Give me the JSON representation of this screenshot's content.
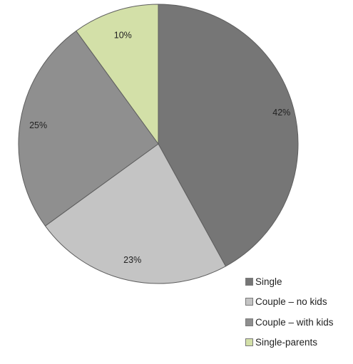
{
  "chart_data": {
    "type": "pie",
    "title": "",
    "categories": [
      "Single",
      "Couple – no kids",
      "Couple – with kids",
      "Single-parents"
    ],
    "values": [
      42,
      23,
      25,
      10
    ],
    "data_labels": [
      "42%",
      "23%",
      "25%",
      "10%"
    ],
    "colors": [
      "#767676",
      "#c4c4c4",
      "#8f8f8f",
      "#d3e0a8"
    ],
    "slice_order_clockwise_from_top": [
      "Single",
      "Couple – no kids",
      "Couple – with kids",
      "Single-parents"
    ],
    "start_angle": "top (12 o'clock)",
    "direction": "clockwise",
    "legend_placement": "bottom-right",
    "legend": [
      {
        "label": "Single",
        "color": "#767676"
      },
      {
        "label": "Couple – no kids",
        "color": "#c4c4c4"
      },
      {
        "label": "Couple – with kids",
        "color": "#8f8f8f"
      },
      {
        "label": "Single-parents",
        "color": "#d3e0a8"
      }
    ]
  }
}
